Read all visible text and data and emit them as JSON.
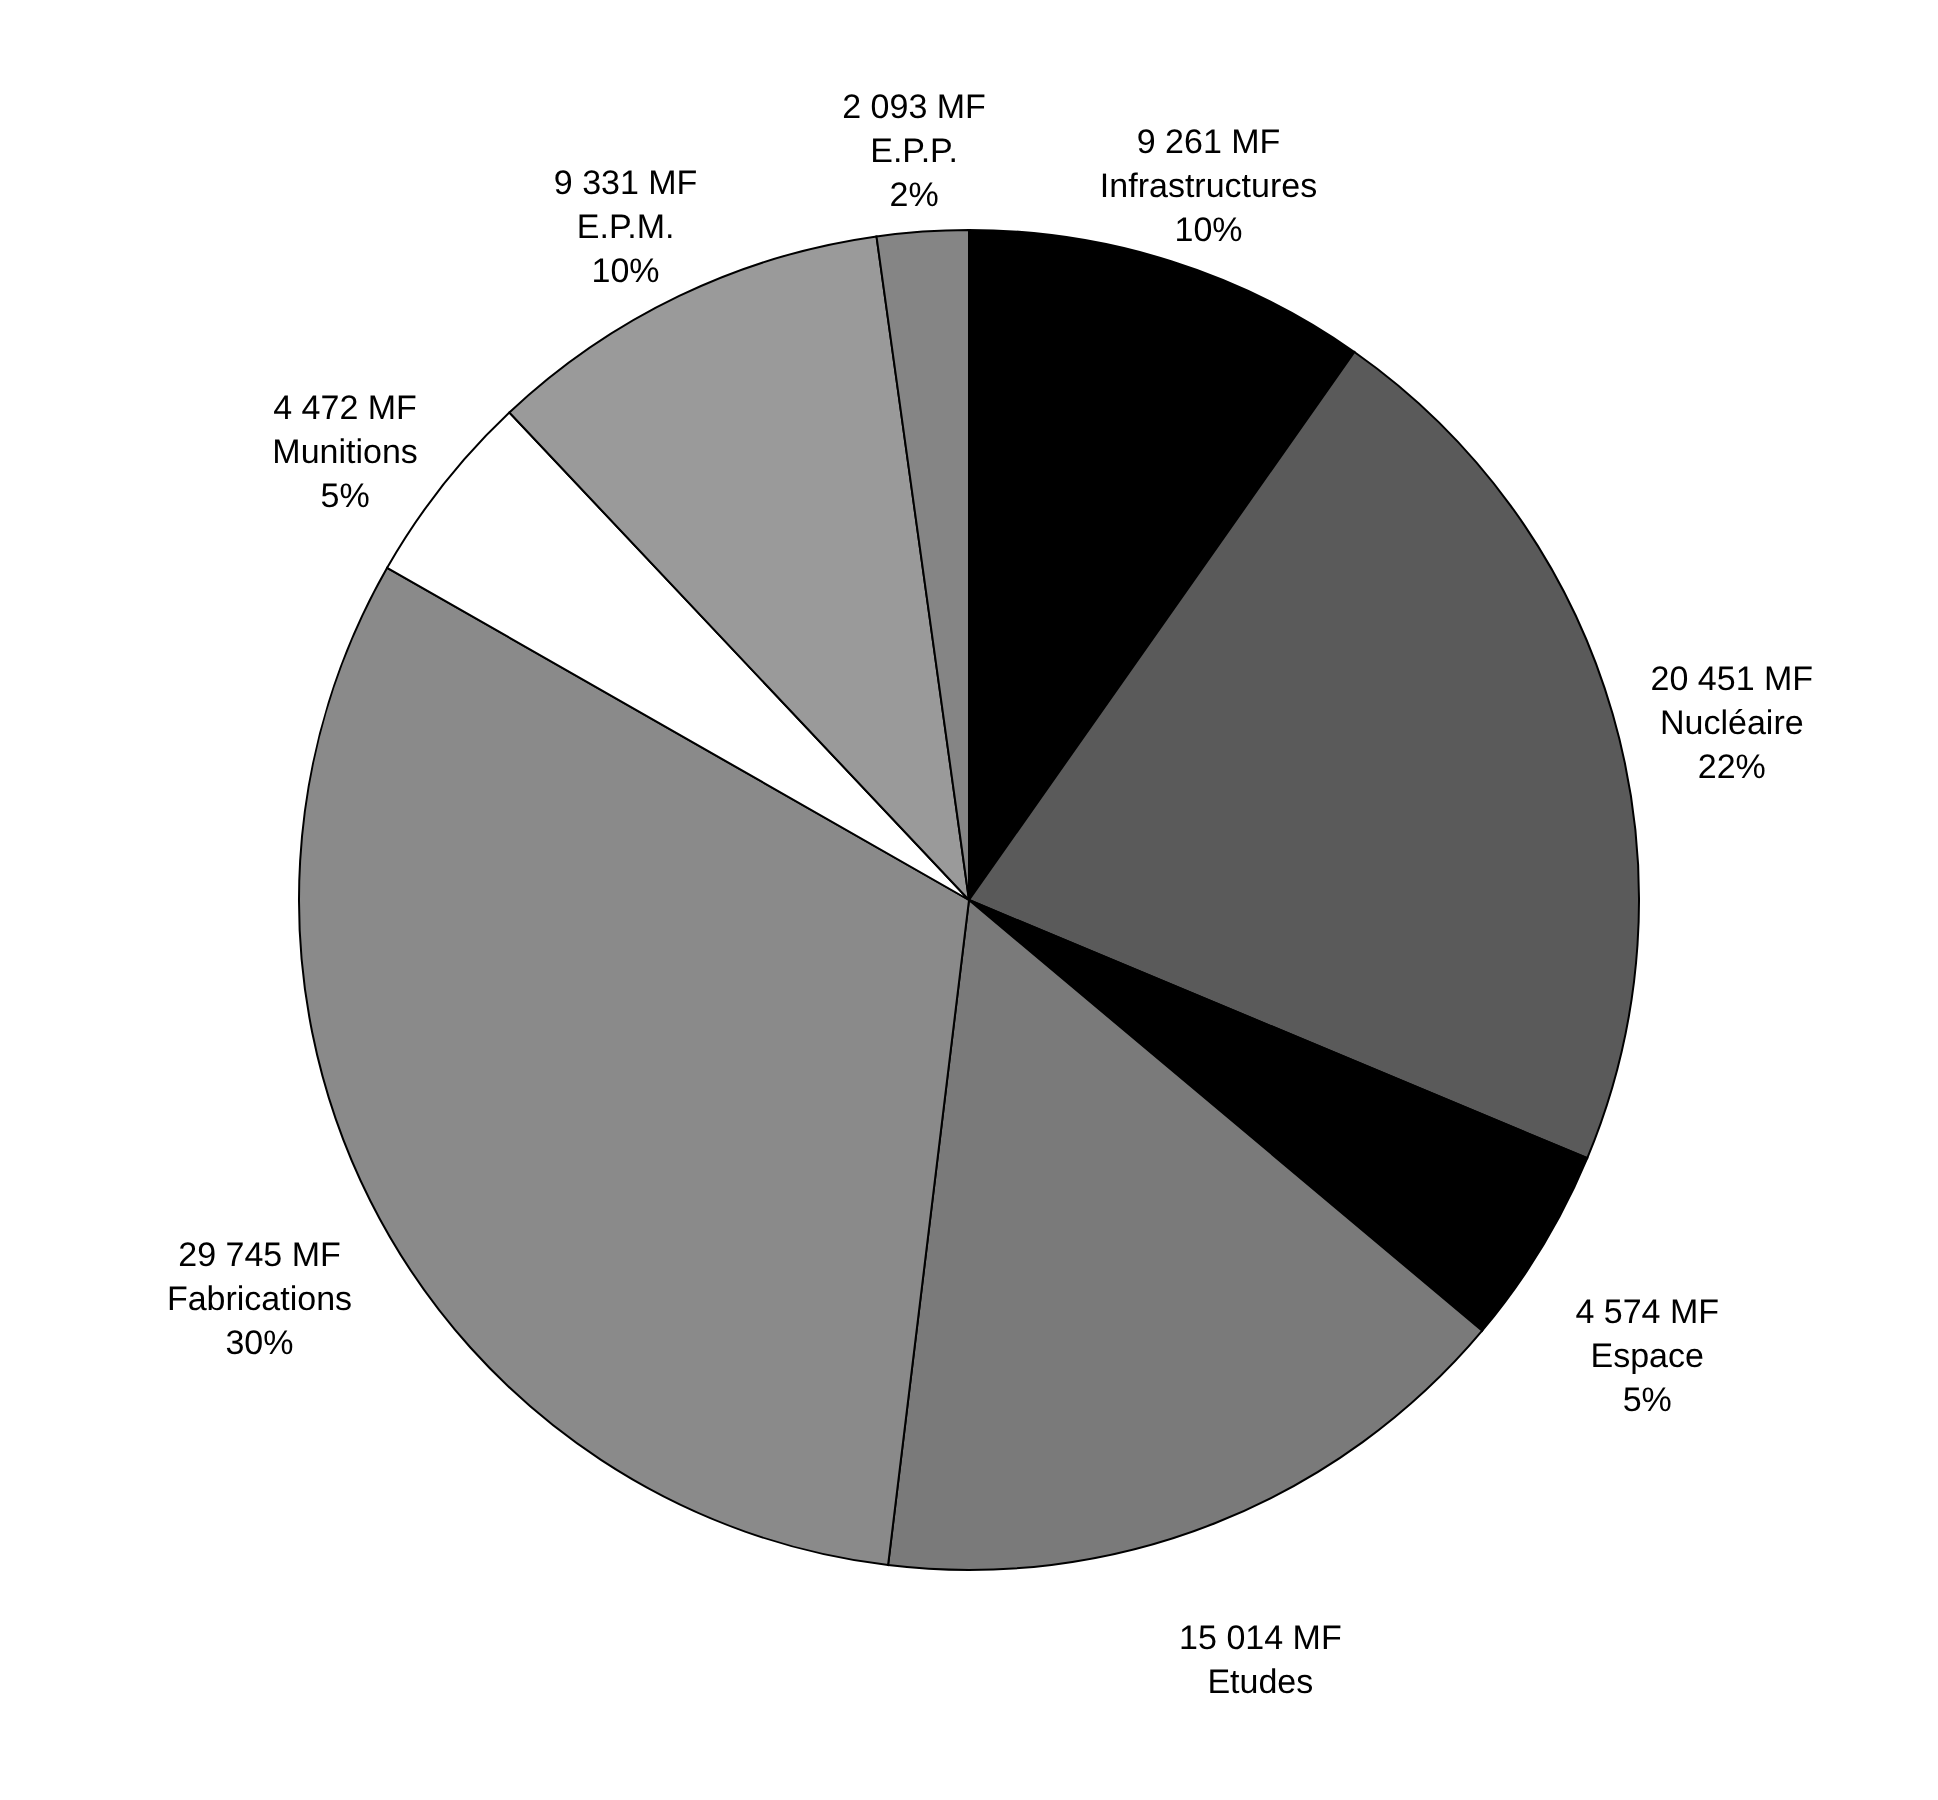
{
  "chart_data": {
    "type": "pie",
    "categories": [
      "Infrastructures",
      "Nucléaire",
      "Espace",
      "Etudes",
      "Fabrications",
      "Munitions",
      "E.P.M.",
      "E.P.P."
    ],
    "values": [
      9261,
      20451,
      4574,
      15014,
      29745,
      4472,
      9331,
      2093
    ],
    "colors": [
      "#000000",
      "#5a5a5a",
      "#000000",
      "#7a7a7a",
      "#8a8a8a",
      "#ffffff",
      "#9a9a9a",
      "#858585"
    ],
    "value_labels": [
      "9 261 MF\n10%",
      "20 451 MF\n22%",
      "4 574 MF\n5%",
      "15 014 MF",
      "29 745 MF\n30%",
      "4 472 MF\n5%",
      "9 331 MF\n10%",
      "2 093 MF\n2%"
    ]
  }
}
